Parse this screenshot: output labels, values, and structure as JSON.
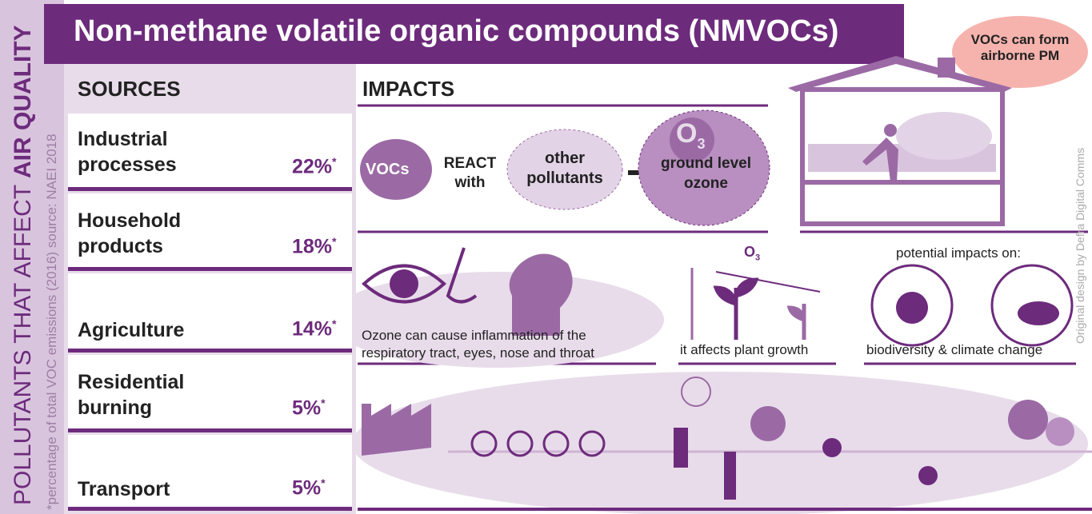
{
  "side_label": {
    "prefix": "POLLUTANTS THAT AFFECT",
    "emphasis": "AIR QUALITY"
  },
  "footnote": "*percentage of total VOC emissions (2016) source: NAEI 2018",
  "title": "Non-methane volatile organic compounds (NMVOCs)",
  "pm_note": "VOCs can form airborne PM",
  "credit": "Original design by Defra Digital Comms",
  "sources": {
    "heading": "SOURCES",
    "note_marker": "*",
    "items": [
      {
        "name": "Industrial processes",
        "share": "22%"
      },
      {
        "name": "Household products",
        "share": "18%"
      },
      {
        "name": "Agriculture",
        "share": "14%"
      },
      {
        "name": "Residential burning",
        "share": "5%"
      },
      {
        "name": "Transport",
        "share": "5%"
      }
    ]
  },
  "impacts": {
    "heading": "IMPACTS",
    "reaction": {
      "vocs": "VOCs",
      "react": "REACT with",
      "other": "other pollutants",
      "ozone_symbol": "O",
      "ozone_sub": "3",
      "result": "ground level ozone"
    },
    "health": "Ozone can cause inflammation of the respiratory tract, eyes, nose and throat",
    "plant_symbol": "O",
    "plant_sub": "3",
    "plant": "it affects plant growth",
    "potential": "potential impacts on:",
    "biodiversity": "biodiversity & climate change"
  }
}
